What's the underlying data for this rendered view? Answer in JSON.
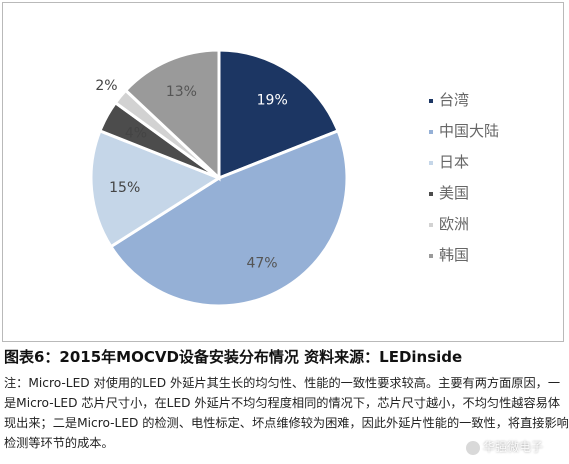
{
  "chart_data": {
    "type": "pie",
    "slices": [
      {
        "label": "台湾",
        "value": 19,
        "value_label": "19%",
        "color": "#1c3663",
        "label_color": "#ffffff"
      },
      {
        "label": "中国大陆",
        "value": 47,
        "value_label": "47%",
        "color": "#95b0d6",
        "label_color": "#555555"
      },
      {
        "label": "日本",
        "value": 15,
        "value_label": "15%",
        "color": "#c5d6e8",
        "label_color": "#444444"
      },
      {
        "label": "美国",
        "value": 4,
        "value_label": "4%",
        "color": "#4c4c4c",
        "label_color": "#444444"
      },
      {
        "label": "欧洲",
        "value": 2,
        "value_label": "2%",
        "color": "#d2d2d2",
        "label_color": "#444444"
      },
      {
        "label": "韩国",
        "value": 13,
        "value_label": "13%",
        "color": "#9a9a9a",
        "label_color": "#555555"
      }
    ],
    "legend_position": "right"
  },
  "caption": "图表6：2015年MOCVD设备安装分布情况 资料来源：LEDinside",
  "note": "注：Micro-LED 对使用的LED 外延片其生长的均匀性、性能的一致性要求较高。主要有两方面原因，一是Micro-LED 芯片尺寸小，在LED 外延片不均匀程度相同的情况下，芯片尺寸越小，不均匀性越容易体现出来；二是Micro-LED 的检测、电性标定、坏点维修较为困难，因此外延片性能的一致性，将直接影响检测等环节的成本。",
  "watermark": "华强微电子"
}
